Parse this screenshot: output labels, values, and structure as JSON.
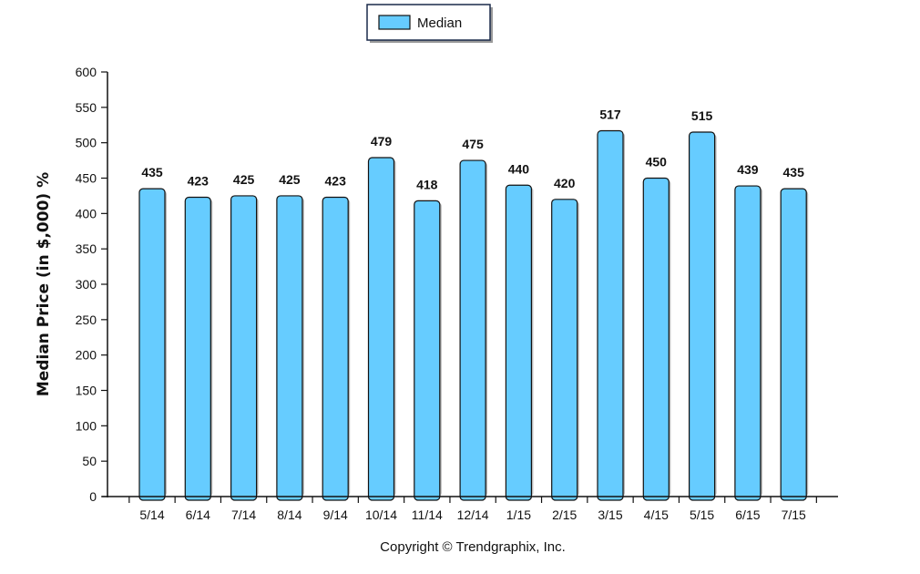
{
  "chart_data": {
    "type": "bar",
    "title": "",
    "xlabel": "",
    "ylabel": "Median Price (in $,000) %",
    "ylim": [
      0,
      600
    ],
    "yticks": [
      0,
      50,
      100,
      150,
      200,
      250,
      300,
      350,
      400,
      450,
      500,
      550,
      600
    ],
    "categories": [
      "5/14",
      "6/14",
      "7/14",
      "8/14",
      "9/14",
      "10/14",
      "11/14",
      "12/14",
      "1/15",
      "2/15",
      "3/15",
      "4/15",
      "5/15",
      "6/15",
      "7/15"
    ],
    "series": [
      {
        "name": "Median",
        "color": "#66ccff",
        "values": [
          435,
          423,
          425,
          425,
          423,
          479,
          418,
          475,
          440,
          420,
          517,
          450,
          515,
          439,
          435
        ]
      }
    ],
    "grid": false,
    "legend_position": "top-center",
    "copyright": "Copyright © Trendgraphix, Inc."
  }
}
